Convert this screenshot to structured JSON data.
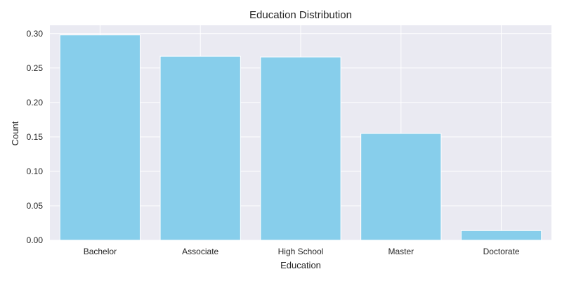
{
  "chart_data": {
    "type": "bar",
    "title": "Education Distribution",
    "xlabel": "Education",
    "ylabel": "Count",
    "categories": [
      "Bachelor",
      "Associate",
      "High School",
      "Master",
      "Doctorate"
    ],
    "values": [
      0.298,
      0.267,
      0.266,
      0.155,
      0.014
    ],
    "ylim": [
      0,
      0.312
    ],
    "yticks": [
      "0.00",
      "0.05",
      "0.10",
      "0.15",
      "0.20",
      "0.25",
      "0.30"
    ],
    "ytick_values": [
      0.0,
      0.05,
      0.1,
      0.15,
      0.2,
      0.25,
      0.3
    ],
    "grid": true,
    "colors": {
      "bar": "#87CEEB",
      "plot_background": "#EAEAF2",
      "grid": "#FFFFFF",
      "text": "#262626"
    }
  }
}
